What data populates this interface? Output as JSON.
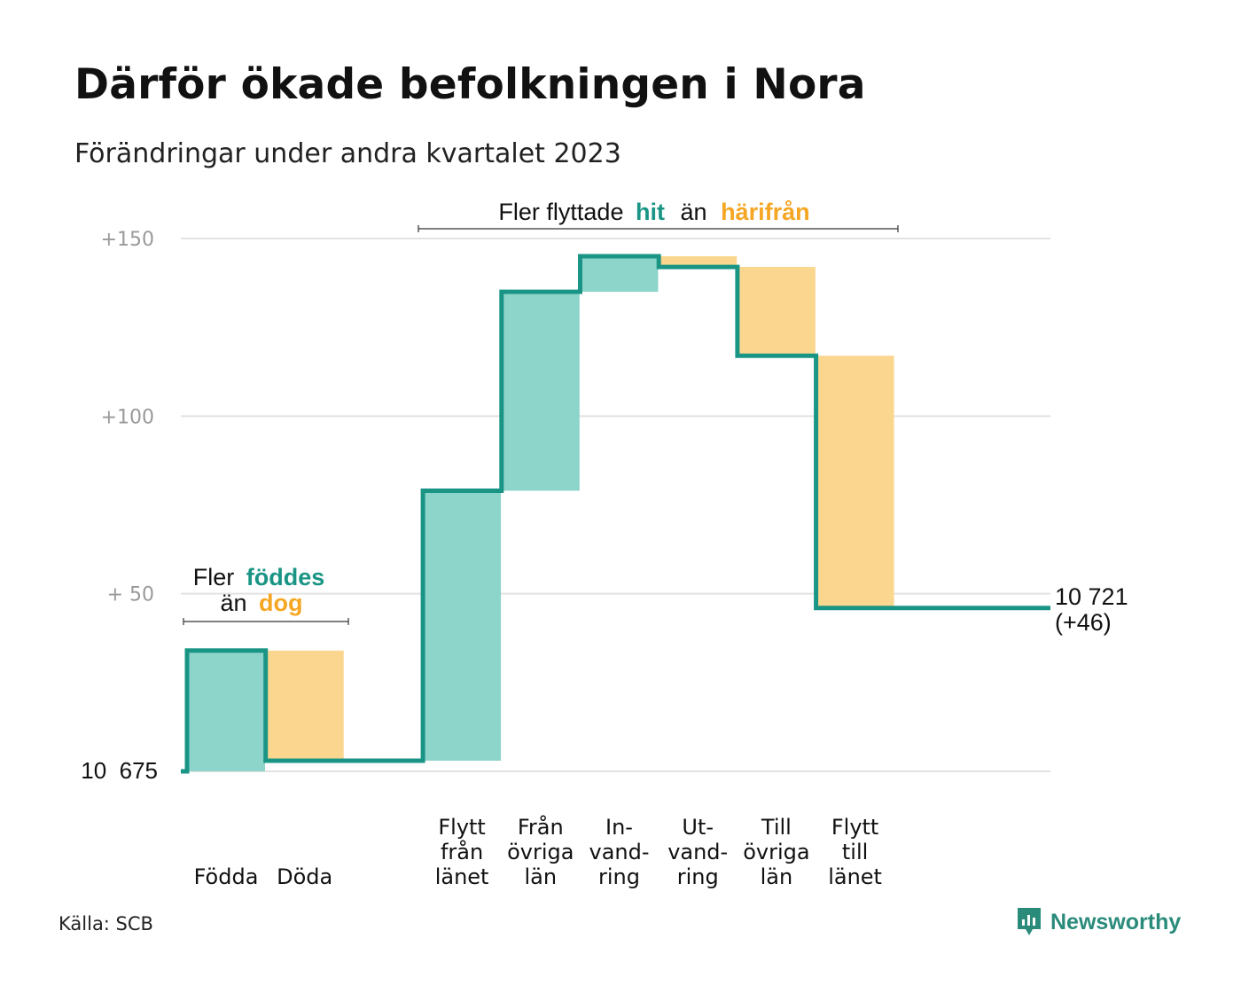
{
  "title": "Därför ökade befolkningen i Nora",
  "subtitle": "Förändringar under andra kvartalet 2023",
  "source": "Källa: SCB",
  "logo": "Newsworthy",
  "colors": {
    "increase": "#8dd4cb",
    "decrease": "#fbd68f",
    "line": "#1a9585",
    "teal_text": "#1a9585",
    "orange_text": "#f5a623",
    "grid": "#e2e2e2",
    "tick": "#9a9a9a"
  },
  "chart_data": {
    "type": "waterfall",
    "baseline": 10675,
    "baseline_label": "10  675",
    "ylim": [
      0,
      150
    ],
    "yticks": [
      {
        "value": 50,
        "label": "+  50"
      },
      {
        "value": 100,
        "label": "+100"
      },
      {
        "value": 150,
        "label": "+150"
      }
    ],
    "steps": [
      {
        "label": [
          "",
          "",
          "Födda"
        ],
        "change": 34,
        "kind": "increase"
      },
      {
        "label": [
          "",
          "",
          "Döda"
        ],
        "change": -31,
        "kind": "decrease"
      },
      {
        "label": [
          "",
          "",
          ""
        ],
        "change": 0,
        "kind": "none"
      },
      {
        "label": [
          "Flytt",
          "från",
          "länet"
        ],
        "change": 76,
        "kind": "increase"
      },
      {
        "label": [
          "Från",
          "övriga",
          "län"
        ],
        "change": 56,
        "kind": "increase"
      },
      {
        "label": [
          "In-",
          "vand-",
          "ring"
        ],
        "change": 10,
        "kind": "increase"
      },
      {
        "label": [
          "Ut-",
          "vand-",
          "ring"
        ],
        "change": -3,
        "kind": "decrease"
      },
      {
        "label": [
          "Till",
          "övriga",
          "län"
        ],
        "change": -25,
        "kind": "decrease"
      },
      {
        "label": [
          "Flytt",
          "till",
          "länet"
        ],
        "change": -71,
        "kind": "decrease"
      }
    ],
    "end_label": {
      "total": "10 721",
      "change": "(+46)"
    },
    "annotations": [
      {
        "pre": "Fler",
        "teal": "föddes",
        "line2_pre": "än",
        "orange": "dog"
      },
      {
        "pre": "Fler flyttade",
        "teal": "hit",
        "mid": "än",
        "orange": "härifrån"
      }
    ]
  }
}
